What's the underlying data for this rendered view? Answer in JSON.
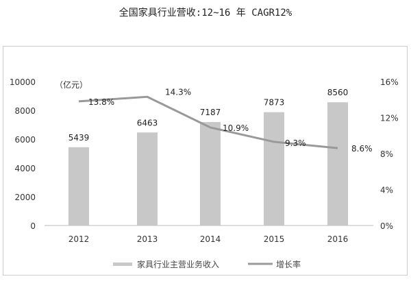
{
  "chart_data": {
    "type": "bar+line",
    "title": "全国家具行业营收:12~16 年 CAGR12%",
    "categories": [
      "2012",
      "2013",
      "2014",
      "2015",
      "2016"
    ],
    "series": [
      {
        "name": "家具行业主营业务收入",
        "type": "bar",
        "axis": "left",
        "values": [
          5439,
          6463,
          7187,
          7873,
          8560
        ],
        "color": "#c8c8c8"
      },
      {
        "name": "增长率",
        "type": "line",
        "axis": "right",
        "values": [
          13.8,
          14.3,
          10.9,
          9.3,
          8.6
        ],
        "labels": [
          "13.8%",
          "14.3%",
          "10.9%",
          "9.3%",
          "8.6%"
        ],
        "color": "#999999"
      }
    ],
    "ylabel": "（亿元）",
    "ylim": [
      0,
      10000
    ],
    "yticks": [
      "0",
      "2000",
      "4000",
      "6000",
      "8000",
      "10000"
    ],
    "y2lim": [
      0,
      16
    ],
    "y2ticks": [
      "0%",
      "4%",
      "8%",
      "12%",
      "16%"
    ],
    "grid": false,
    "legend": "bottom"
  }
}
